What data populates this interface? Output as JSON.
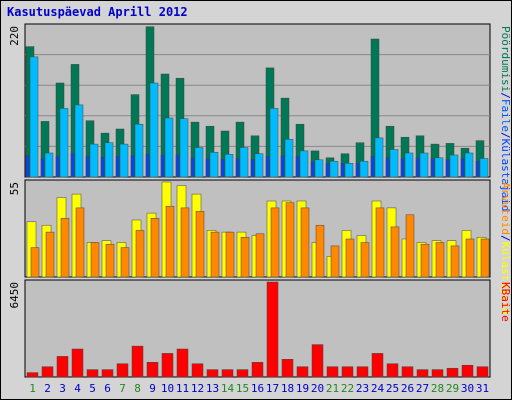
{
  "title": "Kasutuspäevad Aprill 2012",
  "chart_data": [
    {
      "type": "bar",
      "name": "top",
      "ymax_label": "220",
      "ylim": [
        0,
        220
      ],
      "categories": [
        "1",
        "2",
        "3",
        "4",
        "5",
        "6",
        "7",
        "8",
        "9",
        "10",
        "11",
        "12",
        "13",
        "14",
        "15",
        "16",
        "17",
        "18",
        "19",
        "20",
        "21",
        "22",
        "23",
        "24",
        "25",
        "26",
        "27",
        "28",
        "29",
        "30",
        "31"
      ],
      "series": [
        {
          "name": "Pöördumisi",
          "color": "#007755",
          "values": [
            190,
            81,
            137,
            164,
            82,
            64,
            70,
            120,
            219,
            150,
            144,
            80,
            74,
            67,
            80,
            60,
            159,
            115,
            77,
            38,
            28,
            34,
            50,
            201,
            74,
            58,
            60,
            48,
            49,
            42,
            53
          ]
        },
        {
          "name": "Faile",
          "color": "#00bbff",
          "values": [
            175,
            35,
            100,
            105,
            48,
            50,
            48,
            77,
            137,
            86,
            85,
            43,
            36,
            33,
            43,
            34,
            100,
            55,
            38,
            25,
            23,
            20,
            23,
            57,
            40,
            35,
            35,
            28,
            32,
            35,
            27
          ]
        },
        {
          "name": "Külastajaid",
          "color": "#0044ff",
          "values": [
            31,
            27,
            30,
            35,
            30,
            29,
            30,
            31,
            33,
            32,
            32,
            28,
            27,
            26,
            27,
            26,
            30,
            31,
            30,
            22,
            20,
            20,
            20,
            30,
            28,
            27,
            28,
            27,
            25,
            27,
            23
          ]
        }
      ],
      "right_labels": [
        {
          "text": "Pöördumisi",
          "color": "#007755"
        },
        {
          "text": "/",
          "color": "#0000cc"
        },
        {
          "text": "Faile",
          "color": "#0055ff"
        },
        {
          "text": "/",
          "color": "#0000cc"
        },
        {
          "text": "Külastajaid",
          "color": "#0044ff"
        }
      ]
    },
    {
      "type": "bar",
      "name": "middle",
      "ymax_label": "55",
      "ylim": [
        0,
        55
      ],
      "series": [
        {
          "name": "Külastajaid",
          "color": "#ffff00",
          "values": [
            32,
            30,
            46,
            48,
            20,
            21,
            20,
            33,
            37,
            55,
            53,
            48,
            27,
            26,
            26,
            24,
            44,
            44,
            44,
            20,
            12,
            27,
            24,
            44,
            40,
            22,
            20,
            21,
            21,
            27,
            23
          ]
        },
        {
          "name": "Arvuteid",
          "color": "#ff8800",
          "values": [
            17,
            26,
            34,
            40,
            20,
            19,
            17,
            27,
            34,
            41,
            40,
            38,
            26,
            26,
            23,
            25,
            40,
            43,
            40,
            30,
            18,
            22,
            20,
            40,
            29,
            36,
            19,
            20,
            18,
            22,
            22
          ]
        }
      ],
      "right_labels": [
        {
          "text": "Arvuteid",
          "color": "#ff8800"
        },
        {
          "text": "/",
          "color": "#0000cc"
        },
        {
          "text": "Külastajaid",
          "color": "#ffff00"
        }
      ]
    },
    {
      "type": "bar",
      "name": "bottom",
      "ymax_label": "6450",
      "ylim": [
        0,
        6450
      ],
      "series": [
        {
          "name": "KBaite",
          "color": "#ff0000",
          "values": [
            300,
            700,
            1400,
            1900,
            500,
            500,
            900,
            2100,
            1000,
            1600,
            1900,
            900,
            500,
            500,
            500,
            1000,
            6450,
            1200,
            700,
            2200,
            700,
            700,
            700,
            1600,
            900,
            700,
            500,
            500,
            600,
            800,
            700
          ]
        }
      ],
      "right_labels": [
        {
          "text": "KBaite",
          "color": "#ff0000"
        }
      ]
    }
  ],
  "day_labels": [
    {
      "text": "1",
      "weekend": true
    },
    {
      "text": "2",
      "weekend": false
    },
    {
      "text": "3",
      "weekend": false
    },
    {
      "text": "4",
      "weekend": false
    },
    {
      "text": "5",
      "weekend": false
    },
    {
      "text": "6",
      "weekend": false
    },
    {
      "text": "7",
      "weekend": true
    },
    {
      "text": "8",
      "weekend": true
    },
    {
      "text": "9",
      "weekend": false
    },
    {
      "text": "10",
      "weekend": false
    },
    {
      "text": "11",
      "weekend": false
    },
    {
      "text": "12",
      "weekend": false
    },
    {
      "text": "13",
      "weekend": false
    },
    {
      "text": "14",
      "weekend": true
    },
    {
      "text": "15",
      "weekend": true
    },
    {
      "text": "16",
      "weekend": false
    },
    {
      "text": "17",
      "weekend": false
    },
    {
      "text": "18",
      "weekend": false
    },
    {
      "text": "19",
      "weekend": false
    },
    {
      "text": "20",
      "weekend": false
    },
    {
      "text": "21",
      "weekend": true
    },
    {
      "text": "22",
      "weekend": true
    },
    {
      "text": "23",
      "weekend": false
    },
    {
      "text": "24",
      "weekend": false
    },
    {
      "text": "25",
      "weekend": false
    },
    {
      "text": "26",
      "weekend": false
    },
    {
      "text": "27",
      "weekend": false
    },
    {
      "text": "28",
      "weekend": true
    },
    {
      "text": "29",
      "weekend": true
    },
    {
      "text": "30",
      "weekend": false
    },
    {
      "text": "31",
      "weekend": false
    }
  ],
  "colors": {
    "panel_bg": "#c0c0c0",
    "frame_bg": "#d4d4d4",
    "grid": "#888888",
    "weekday_text": "#0000cc",
    "weekend_text": "#228822"
  }
}
